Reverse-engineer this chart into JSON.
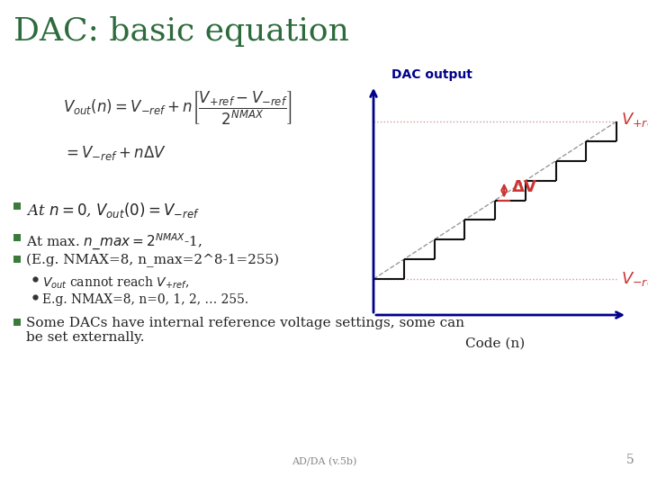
{
  "title": "DAC: basic equation",
  "title_color": "#2d6b3c",
  "title_fontsize": 26,
  "bg_color": "#ffffff",
  "chart_label": "DAC output",
  "chart_label_color": "#00008B",
  "vplus_label": "$V_{+ref}$",
  "vminus_label": "$V_{-ref}$",
  "delta_label": "$\\mathbf{\\Delta V}$",
  "xlabel": "Code (n)",
  "vplus_color": "#cc3333",
  "vminus_color": "#cc3333",
  "delta_color": "#cc3333",
  "axis_color": "#00008B",
  "staircase_color": "#111111",
  "dotted_color": "#cc9999",
  "diagonal_color": "#555555",
  "bullet_color": "#3a7a3a",
  "footer": "AD/DA (v.5b)",
  "footer_color": "#888888",
  "page_num": "5",
  "n_steps": 8
}
